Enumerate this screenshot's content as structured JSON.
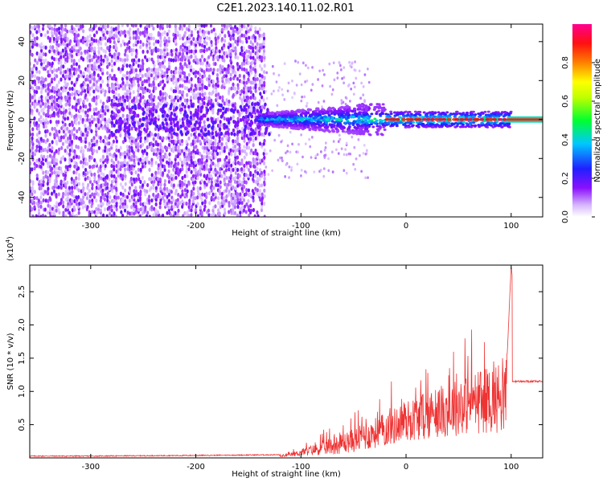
{
  "title": "C2E1.2023.140.11.02.R01",
  "chart_data": [
    {
      "type": "heatmap",
      "xlabel": "Height of straight line (km)",
      "ylabel": "Frequency (Hz)",
      "xlim": [
        -358,
        130
      ],
      "ylim": [
        -50,
        49
      ],
      "x_ticks": [
        -300,
        -200,
        -100,
        0,
        100
      ],
      "y_ticks": [
        -40,
        -20,
        0,
        20,
        40
      ],
      "colorbar": {
        "label": "Normalized spectral amplitude",
        "range": [
          0,
          1
        ],
        "ticks": [
          0.0,
          0.2,
          0.4,
          0.6,
          0.8
        ],
        "colors": [
          "#ffffff",
          "#b070ff",
          "#7a00ff",
          "#2040ff",
          "#00d0ff",
          "#00ff40",
          "#ffff00",
          "#ff8000",
          "#ff0000",
          "#ff0080"
        ]
      },
      "description_regions": [
        {
          "x_range": [
            -358,
            -135
          ],
          "freq_range": [
            -50,
            49
          ],
          "amplitude": 0.08
        },
        {
          "x_range": [
            -135,
            -40
          ],
          "freq_range": [
            -8,
            8
          ],
          "amplitude": 0.35
        },
        {
          "x_range": [
            -40,
            100
          ],
          "freq_range": [
            -2,
            2
          ],
          "amplitude": 0.9
        }
      ]
    },
    {
      "type": "line",
      "xlabel": "Height of straight line (km)",
      "ylabel": "SNR (10 * v/v)",
      "y_multiplier": "(x10",
      "y_multiplier_exp": "4",
      "y_multiplier_close": ")",
      "xlim": [
        -358,
        130
      ],
      "ylim": [
        0,
        2.9
      ],
      "x_ticks": [
        -300,
        -200,
        -100,
        0,
        100
      ],
      "y_ticks": [
        0.5,
        1.0,
        1.5,
        2.0,
        2.5
      ],
      "series": [
        {
          "color": "#ee3333",
          "x": [
            -358,
            -300,
            -200,
            -120,
            -100,
            -80,
            -60,
            -40,
            -20,
            0,
            20,
            40,
            60,
            80,
            95,
            100,
            110,
            130
          ],
          "y": [
            0.02,
            0.02,
            0.03,
            0.04,
            0.08,
            0.12,
            0.18,
            0.3,
            0.5,
            0.7,
            0.8,
            0.9,
            1.0,
            1.05,
            1.1,
            2.9,
            1.15,
            1.15
          ]
        }
      ]
    }
  ]
}
